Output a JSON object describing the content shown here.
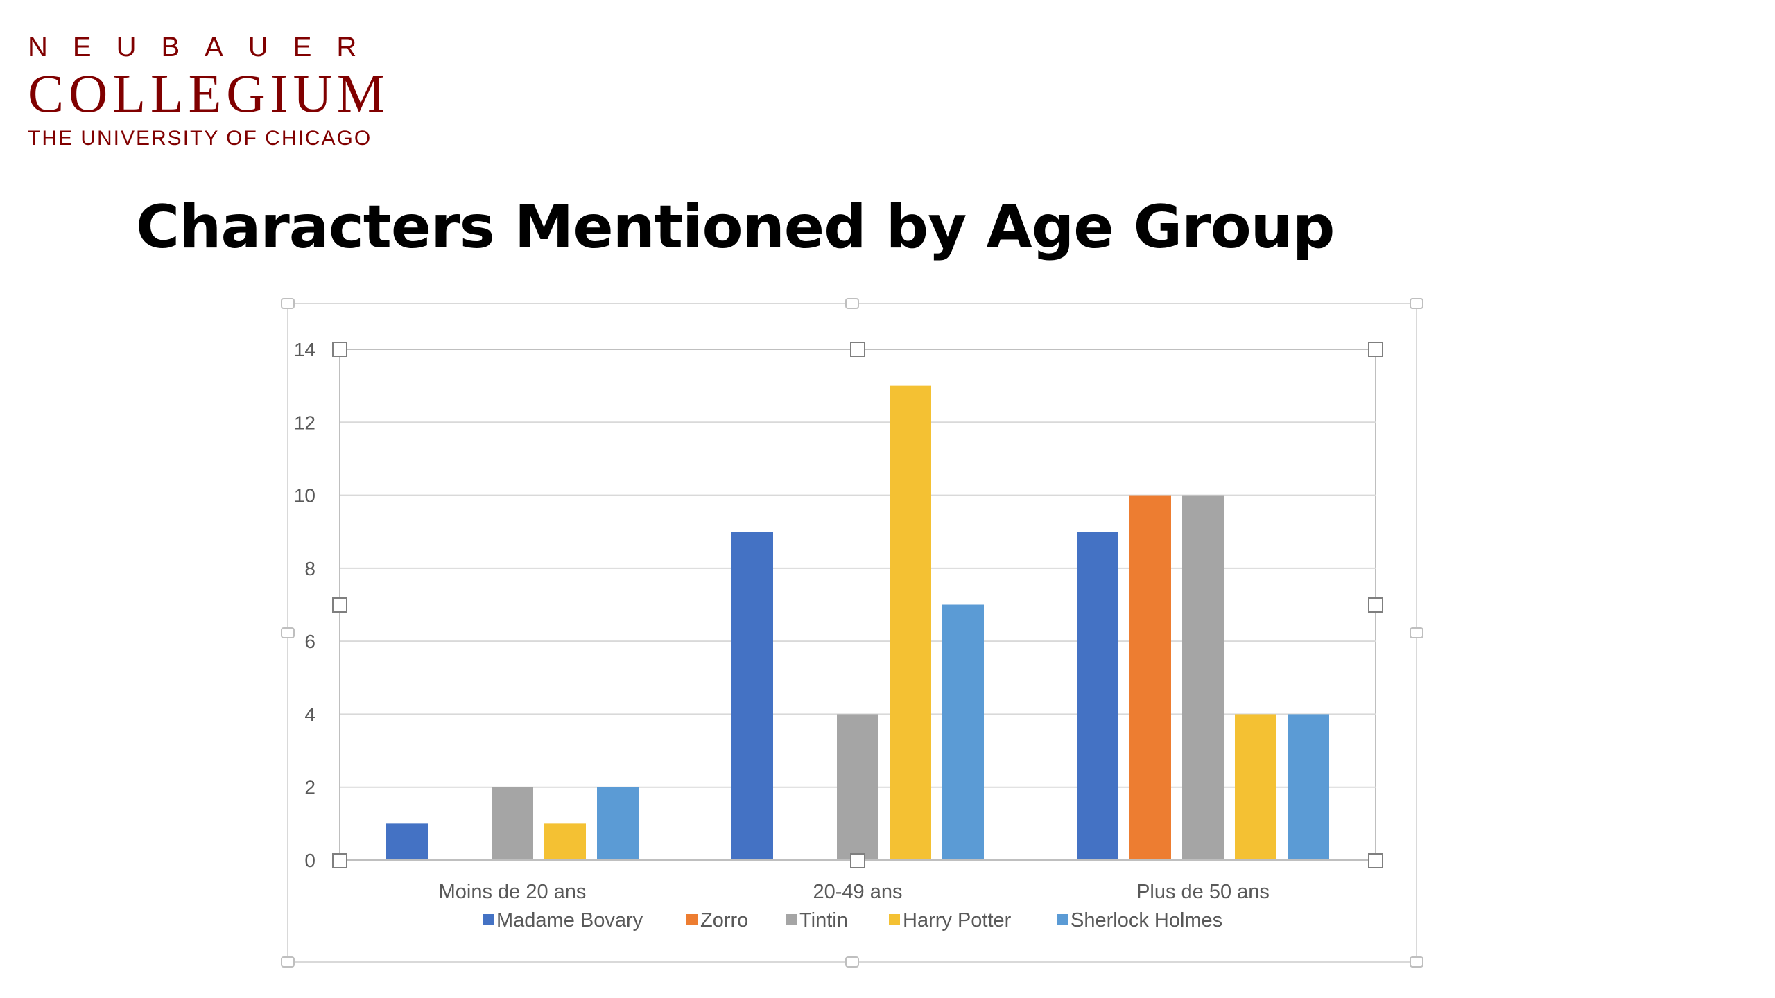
{
  "logo": {
    "line1": "NEUBAUER",
    "line2": "COLLEGIUM",
    "line3": "THE UNIVERSITY OF CHICAGO"
  },
  "slide": {
    "title": "Characters Mentioned by Age Group"
  },
  "chart_data": {
    "type": "bar",
    "categories": [
      "Moins de 20 ans",
      "20-49 ans",
      "Plus de 50 ans"
    ],
    "series": [
      {
        "name": "Madame Bovary",
        "color": "#4472C4",
        "values": [
          1,
          9,
          9
        ]
      },
      {
        "name": "Zorro",
        "color": "#ED7D31",
        "values": [
          0,
          0,
          10
        ]
      },
      {
        "name": "Tintin",
        "color": "#A5A5A5",
        "values": [
          2,
          4,
          10
        ]
      },
      {
        "name": "Harry Potter",
        "color": "#F4C133",
        "values": [
          1,
          13,
          4
        ]
      },
      {
        "name": "Sherlock Holmes",
        "color": "#5B9BD5",
        "values": [
          2,
          7,
          4
        ]
      }
    ],
    "y_ticks": [
      0,
      2,
      4,
      6,
      8,
      10,
      12,
      14
    ],
    "ylim": [
      0,
      14
    ],
    "grid": true,
    "legend_position": "bottom",
    "xlabel": "",
    "ylabel": ""
  }
}
